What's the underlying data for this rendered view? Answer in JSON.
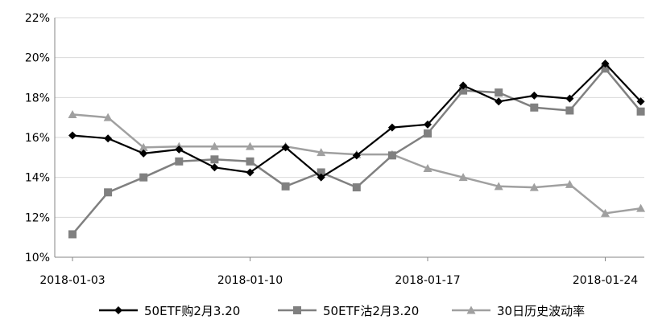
{
  "chart_data": {
    "type": "line",
    "title": "",
    "xlabel": "",
    "ylabel": "",
    "x": [
      "2018-01-03",
      "2018-01-04",
      "2018-01-05",
      "2018-01-08",
      "2018-01-09",
      "2018-01-10",
      "2018-01-11",
      "2018-01-12",
      "2018-01-15",
      "2018-01-16",
      "2018-01-17",
      "2018-01-18",
      "2018-01-19",
      "2018-01-22",
      "2018-01-23",
      "2018-01-24",
      "2018-01-25"
    ],
    "x_tick_labels": [
      "2018-01-03",
      "2018-01-10",
      "2018-01-17",
      "2018-01-24"
    ],
    "y_tick_labels": [
      "10%",
      "12%",
      "14%",
      "16%",
      "18%",
      "20%",
      "22%"
    ],
    "ylim": [
      0.1,
      0.22
    ],
    "grid": "horizontal",
    "legend_position": "bottom",
    "series": [
      {
        "name": "50ETF购2月3.20",
        "color": "#000000",
        "marker": "diamond",
        "values": [
          0.161,
          0.1595,
          0.152,
          0.154,
          0.145,
          0.1425,
          0.155,
          0.14,
          0.151,
          0.165,
          0.1665,
          0.186,
          0.178,
          0.181,
          0.1795,
          0.197,
          0.178
        ]
      },
      {
        "name": "50ETF沽2月3.20",
        "color": "#808080",
        "marker": "square",
        "values": [
          0.1115,
          0.1325,
          0.14,
          0.148,
          0.149,
          0.148,
          0.1355,
          0.1425,
          0.135,
          0.151,
          0.162,
          0.1835,
          0.1825,
          0.175,
          0.1735,
          0.1945,
          0.173
        ]
      },
      {
        "name": "30日历史波动率",
        "color": "#A0A0A0",
        "marker": "triangle",
        "values": [
          0.1715,
          0.17,
          0.155,
          0.1555,
          0.1555,
          0.1555,
          0.1555,
          0.1525,
          0.1515,
          0.1515,
          0.1445,
          0.14,
          0.1355,
          0.135,
          0.1365,
          0.122,
          0.1245
        ]
      }
    ]
  }
}
